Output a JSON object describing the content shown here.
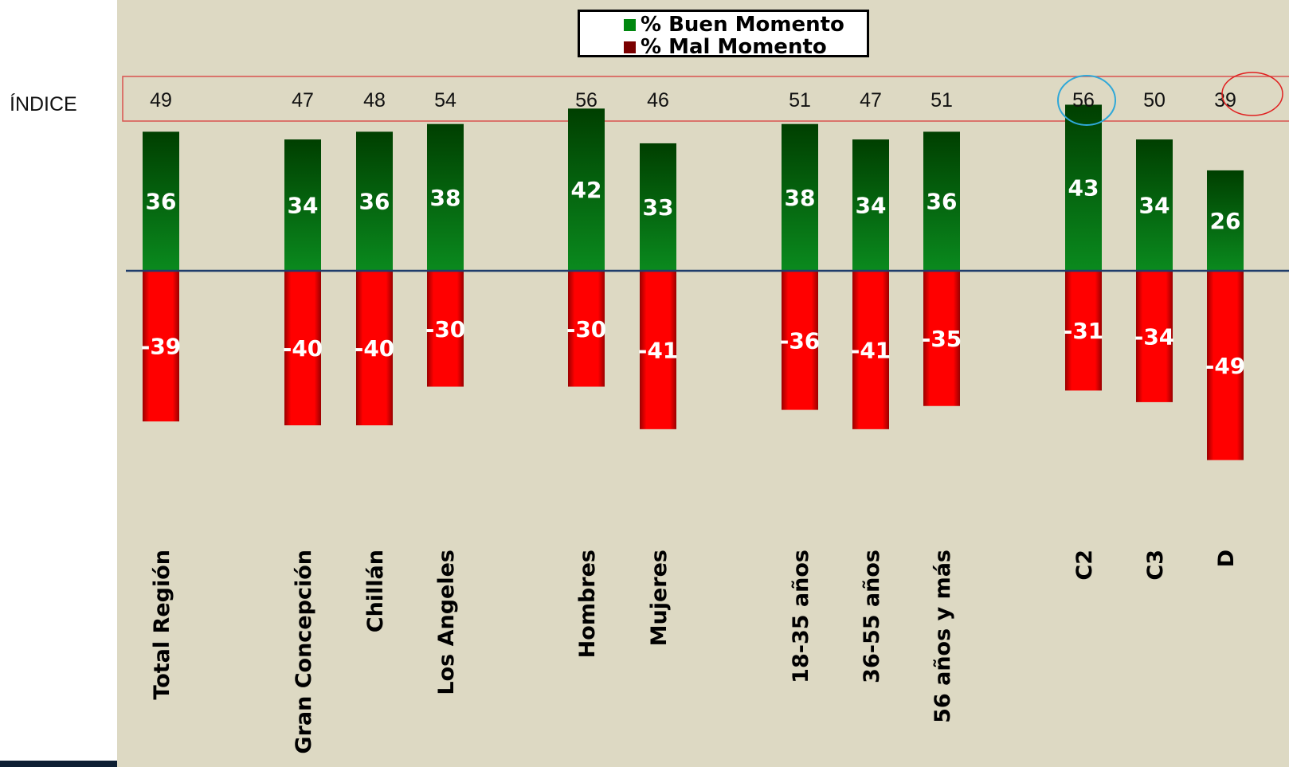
{
  "row_label": "ÍNDICE",
  "legend": {
    "good_label": "% Buen Momento",
    "bad_label": "% Mal Momento",
    "good_color": "#00870f",
    "bad_color": "#7a0000"
  },
  "colors": {
    "good_top": "#003f00",
    "good_bottom": "#0a8a1e",
    "bad_light": "#ff0000",
    "bad_dark": "#9a0000",
    "zero_line": "#1f3d6b",
    "index_box": "#d9534f",
    "highlight_high": "#2fa8d8",
    "highlight_low": "#e02020"
  },
  "chart_data": {
    "type": "bar",
    "categories": [
      "Total Región",
      "Gran Concepción",
      "Chillán",
      "Los Angeles",
      "Hombres",
      "Mujeres",
      "18-35 años",
      "36-55 años",
      "56 años y más",
      "C2",
      "C3",
      "D"
    ],
    "series": [
      {
        "name": "% Buen Momento",
        "values": [
          36,
          34,
          36,
          38,
          42,
          33,
          38,
          34,
          36,
          43,
          34,
          26
        ]
      },
      {
        "name": "% Mal Momento",
        "values": [
          -39,
          -40,
          -40,
          -30,
          -30,
          -41,
          -36,
          -41,
          -35,
          -31,
          -34,
          -49
        ]
      }
    ],
    "index_values": [
      "49",
      "47",
      "48",
      "54",
      "56",
      "46",
      "51",
      "47",
      "51",
      "56",
      "50",
      "39"
    ],
    "highlighted": {
      "high": "C2",
      "low": "D"
    },
    "ylim": [
      -52,
      45
    ],
    "grid": false,
    "legend_position": "top-center"
  }
}
